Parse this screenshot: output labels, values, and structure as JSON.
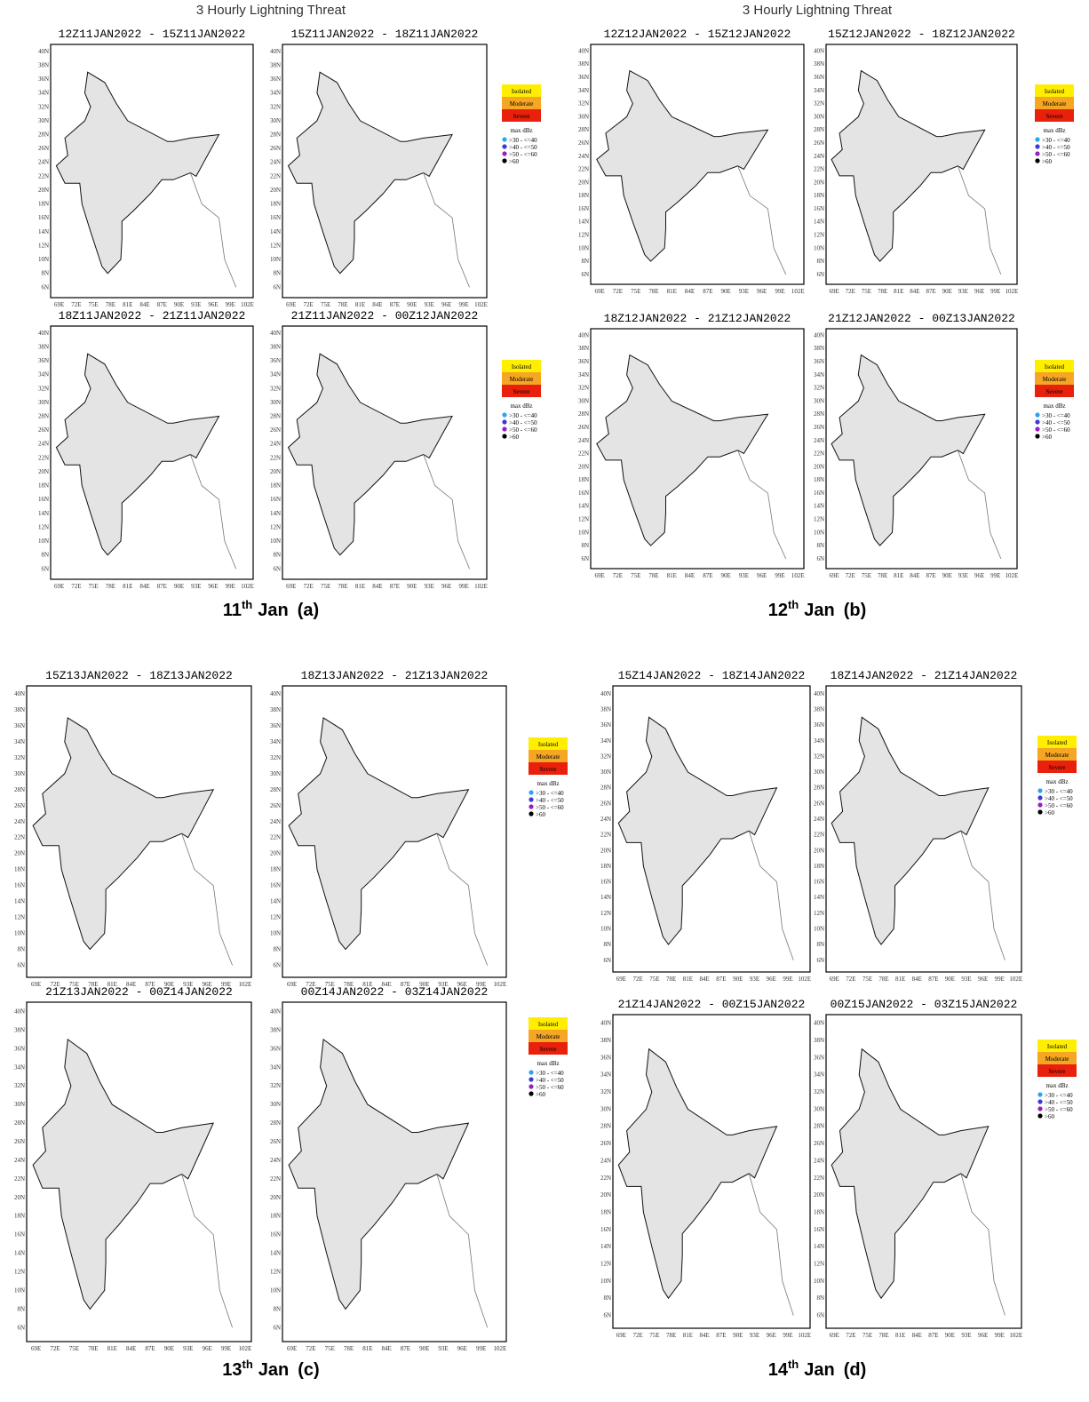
{
  "groups": [
    {
      "title": "3 Hourly Lightning Threat",
      "panels": [
        {
          "title": "12Z11JAN2022 - 15Z11JAN2022"
        },
        {
          "title": "15Z11JAN2022 - 18Z11JAN2022"
        },
        {
          "title": "18Z11JAN2022 - 21Z11JAN2022"
        },
        {
          "title": "21Z11JAN2022 - 00Z12JAN2022"
        }
      ],
      "caption": {
        "day": "11",
        "suffix": "th",
        "month": "Jan",
        "label": "(a)"
      }
    },
    {
      "title": "3 Hourly Lightning Threat",
      "panels": [
        {
          "title": "12Z12JAN2022 - 15Z12JAN2022"
        },
        {
          "title": "15Z12JAN2022 - 18Z12JAN2022"
        },
        {
          "title": "18Z12JAN2022 - 21Z12JAN2022"
        },
        {
          "title": "21Z12JAN2022 - 00Z13JAN2022"
        }
      ],
      "caption": {
        "day": "12",
        "suffix": "th",
        "month": "Jan",
        "label": "(b)"
      }
    },
    {
      "panels": [
        {
          "title": "15Z13JAN2022 - 18Z13JAN2022"
        },
        {
          "title": "18Z13JAN2022 - 21Z13JAN2022"
        },
        {
          "title": "21Z13JAN2022 - 00Z14JAN2022"
        },
        {
          "title": "00Z14JAN2022 - 03Z14JAN2022"
        }
      ],
      "caption": {
        "day": "13",
        "suffix": "th",
        "month": "Jan",
        "label": "(c)"
      }
    },
    {
      "panels": [
        {
          "title": "15Z14JAN2022 - 18Z14JAN2022"
        },
        {
          "title": "18Z14JAN2022 - 21Z14JAN2022"
        },
        {
          "title": "21Z14JAN2022 - 00Z15JAN2022"
        },
        {
          "title": "00Z15JAN2022 - 03Z15JAN2022"
        }
      ],
      "caption": {
        "day": "14",
        "suffix": "th",
        "month": "Jan",
        "label": "(d)"
      }
    }
  ],
  "lat_labels": [
    "40N",
    "38N",
    "36N",
    "34N",
    "32N",
    "30N",
    "28N",
    "26N",
    "24N",
    "22N",
    "20N",
    "18N",
    "16N",
    "14N",
    "12N",
    "10N",
    "8N",
    "6N"
  ],
  "lon_labels": [
    "69E",
    "72E",
    "75E",
    "78E",
    "81E",
    "84E",
    "87E",
    "90E",
    "93E",
    "96E",
    "99E",
    "102E"
  ],
  "legend": {
    "threat": [
      "Isolated",
      "Moderate",
      "Severe"
    ],
    "dbz_title": "max dBz",
    "dbz": [
      ">30 - <=40",
      ">40 - <=50",
      ">50 - <=60",
      ">60"
    ]
  }
}
